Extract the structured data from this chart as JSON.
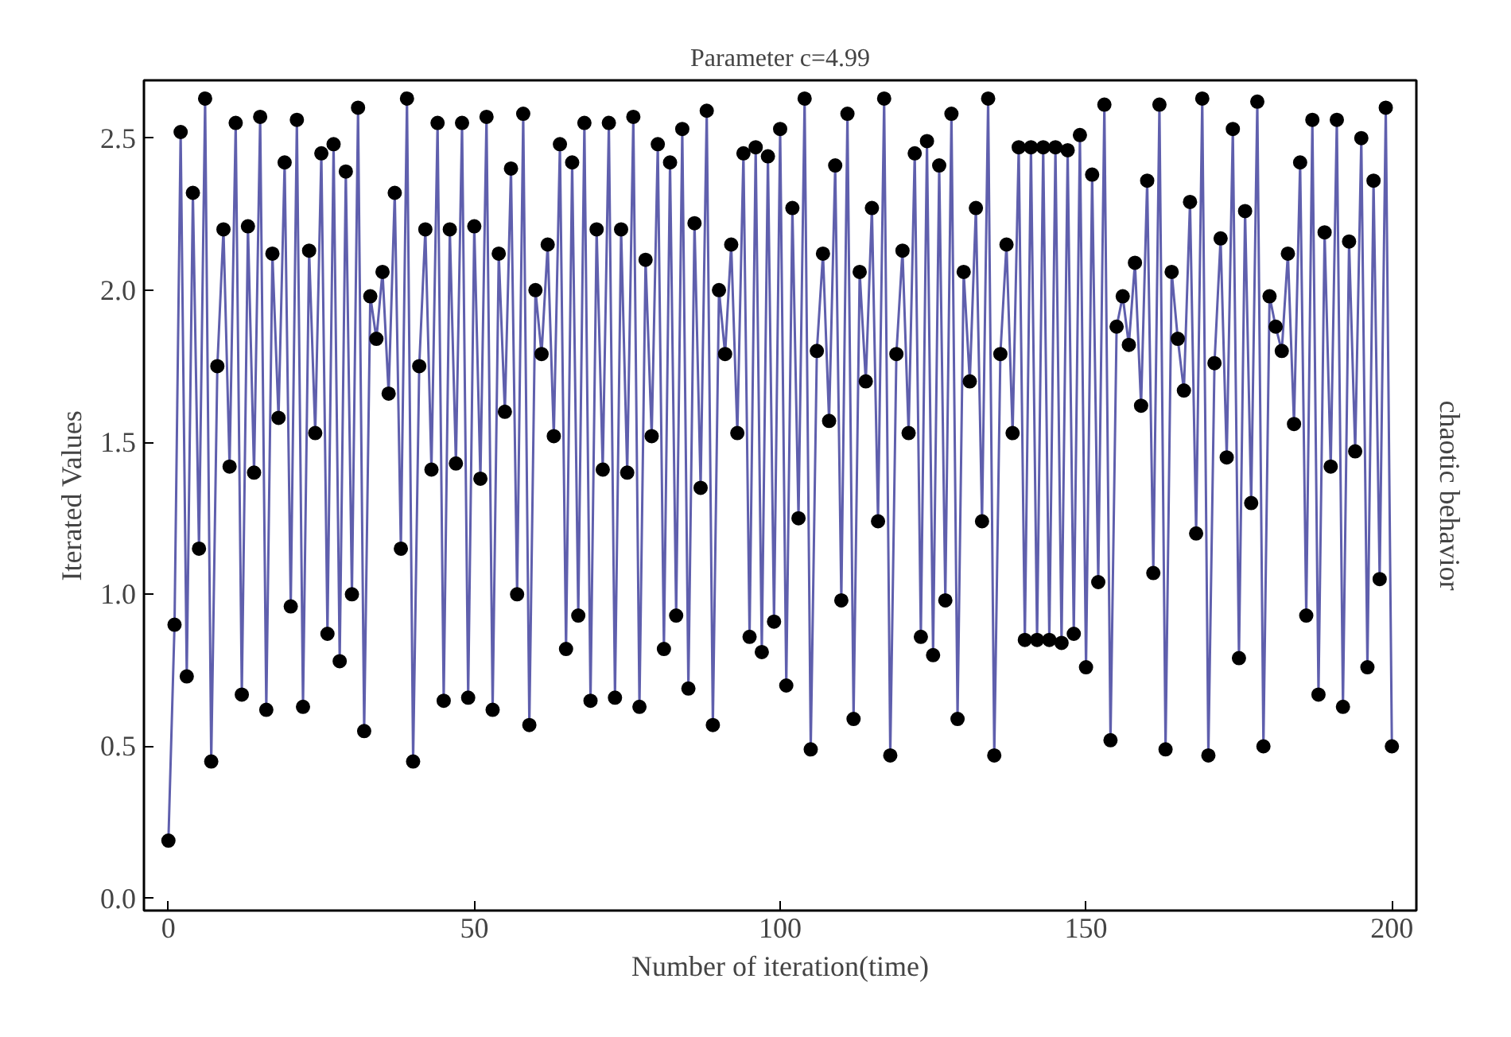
{
  "chart_data": {
    "type": "line",
    "title": "Parameter c=4.99",
    "xlabel": "Number of iteration(time)",
    "ylabel": "Iterated Values",
    "y2label": "chaotic behavior",
    "marker": "circle",
    "line_style": "solid",
    "grid": false,
    "xlim": [
      -4,
      204
    ],
    "ylim": [
      -0.04,
      2.69
    ],
    "xticks": [
      0,
      50,
      100,
      150,
      200
    ],
    "yticks": [
      {
        "value": 0,
        "label": "0.0"
      },
      {
        "value": 0.5,
        "label": "0.5"
      },
      {
        "value": 1,
        "label": "1.0"
      },
      {
        "value": 1.5,
        "label": "1.5"
      },
      {
        "value": 2,
        "label": "2.0"
      },
      {
        "value": 2.5,
        "label": "2.5"
      }
    ],
    "series": [
      {
        "color": "#5f5fad",
        "x": [
          0,
          1,
          2,
          3,
          4,
          5,
          6,
          7,
          8,
          9,
          10,
          11,
          12,
          13,
          14,
          15,
          16,
          17,
          18,
          19,
          20,
          21,
          22,
          23,
          24,
          25,
          26,
          27,
          28,
          29,
          30,
          31,
          32,
          33,
          34,
          35,
          36,
          37,
          38,
          39,
          40,
          41,
          42,
          43,
          44,
          45,
          46,
          47,
          48,
          49,
          50,
          51,
          52,
          53,
          54,
          55,
          56,
          57,
          58,
          59,
          60,
          61,
          62,
          63,
          64,
          65,
          66,
          67,
          68,
          69,
          70,
          71,
          72,
          73,
          74,
          75,
          76,
          77,
          78,
          79,
          80,
          81,
          82,
          83,
          84,
          85,
          86,
          87,
          88,
          89,
          90,
          91,
          92,
          93,
          94,
          95,
          96,
          97,
          98,
          99,
          100,
          101,
          102,
          103,
          104,
          105,
          106,
          107,
          108,
          109,
          110,
          111,
          112,
          113,
          114,
          115,
          116,
          117,
          118,
          119,
          120,
          121,
          122,
          123,
          124,
          125,
          126,
          127,
          128,
          129,
          130,
          131,
          132,
          133,
          134,
          135,
          136,
          137,
          138,
          139,
          140,
          141,
          142,
          143,
          144,
          145,
          146,
          147,
          148,
          149,
          150,
          151,
          152,
          153,
          154,
          155,
          156,
          157,
          158,
          159,
          160,
          161,
          162,
          163,
          164,
          165,
          166,
          167,
          168,
          169,
          170,
          171,
          172,
          173,
          174,
          175,
          176,
          177,
          178,
          179,
          180,
          181,
          182,
          183,
          184,
          185,
          186,
          187,
          188,
          189,
          190,
          191,
          192,
          193,
          194,
          195,
          196,
          197,
          198,
          199,
          200
        ],
        "values": [
          0.19,
          0.9,
          2.52,
          0.73,
          2.32,
          1.15,
          2.63,
          0.45,
          1.75,
          2.2,
          1.42,
          2.55,
          0.67,
          2.21,
          1.4,
          2.57,
          0.62,
          2.12,
          1.58,
          2.42,
          0.96,
          2.56,
          0.63,
          2.13,
          1.53,
          2.45,
          0.87,
          2.48,
          0.78,
          2.39,
          1.0,
          2.6,
          0.55,
          1.98,
          1.84,
          2.06,
          1.66,
          2.32,
          1.15,
          2.63,
          0.45,
          1.75,
          2.2,
          1.41,
          2.55,
          0.65,
          2.2,
          1.43,
          2.55,
          0.66,
          2.21,
          1.38,
          2.57,
          0.62,
          2.12,
          1.6,
          2.4,
          1.0,
          2.58,
          0.57,
          2.0,
          1.79,
          2.15,
          1.52,
          2.48,
          0.82,
          2.42,
          0.93,
          2.55,
          0.65,
          2.2,
          1.41,
          2.55,
          0.66,
          2.2,
          1.4,
          2.57,
          0.63,
          2.1,
          1.52,
          2.48,
          0.82,
          2.42,
          0.93,
          2.53,
          0.69,
          2.22,
          1.35,
          2.59,
          0.57,
          2.0,
          1.79,
          2.15,
          1.53,
          2.45,
          0.86,
          2.47,
          0.81,
          2.44,
          0.91,
          2.53,
          0.7,
          2.27,
          1.25,
          2.63,
          0.49,
          1.8,
          2.12,
          1.57,
          2.41,
          0.98,
          2.58,
          0.59,
          2.06,
          1.7,
          2.27,
          1.24,
          2.63,
          0.47,
          1.79,
          2.13,
          1.53,
          2.45,
          0.86,
          2.49,
          0.8,
          2.41,
          0.98,
          2.58,
          0.59,
          2.06,
          1.7,
          2.27,
          1.24,
          2.63,
          0.47,
          1.79,
          2.15,
          1.53,
          2.47,
          0.85,
          2.47,
          0.85,
          2.47,
          0.85,
          2.47,
          0.84,
          2.46,
          0.87,
          2.51,
          0.76,
          2.38,
          1.04,
          2.61,
          0.52,
          1.88,
          1.98,
          1.82,
          2.09,
          1.62,
          2.36,
          1.07,
          2.61,
          0.49,
          2.06,
          1.84,
          1.67,
          2.29,
          1.2,
          2.63,
          0.47,
          1.76,
          2.17,
          1.45,
          2.53,
          0.79,
          2.26,
          1.3,
          2.62,
          0.5,
          1.98,
          1.88,
          1.8,
          2.12,
          1.56,
          2.42,
          0.93,
          2.56,
          0.67,
          2.19,
          1.42,
          2.56,
          0.63,
          2.16,
          1.47,
          2.5,
          0.76,
          2.36,
          1.05,
          2.6,
          0.5
        ]
      }
    ]
  }
}
